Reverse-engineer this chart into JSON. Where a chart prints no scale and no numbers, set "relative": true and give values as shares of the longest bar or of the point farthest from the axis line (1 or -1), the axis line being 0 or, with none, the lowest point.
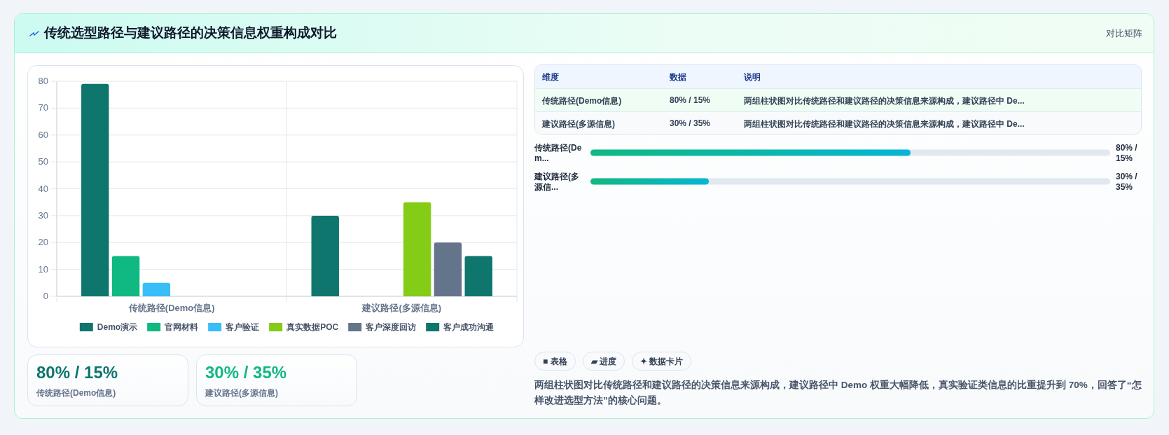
{
  "chart_data": [
    {
      "type": "other",
      "title": "传统选型路径与建议路径的决策信息权重构成对比",
      "annotations": [
        "对比矩阵"
      ]
    },
    {
      "type": "bar",
      "categories": [
        "传统路径(Demo信息)",
        "建议路径(多源信息)"
      ],
      "series": [
        {
          "name": "Demo演示",
          "color": "#0f766e",
          "values": [
            79,
            30
          ]
        },
        {
          "name": "官网材料",
          "color": "#10b981",
          "values": [
            15,
            null
          ]
        },
        {
          "name": "客户验证",
          "color": "#38bdf8",
          "values": [
            5,
            null
          ]
        },
        {
          "name": "真实数据POC",
          "color": "#84cc16",
          "values": [
            null,
            35
          ]
        },
        {
          "name": "客户深度回访",
          "color": "#64748b",
          "values": [
            null,
            20
          ]
        },
        {
          "name": "客户成功沟通",
          "color": "#0f766e",
          "values": [
            null,
            15
          ]
        }
      ],
      "ylim": [
        0,
        80
      ],
      "yticks": [
        0,
        10,
        20,
        30,
        40,
        50,
        60,
        70,
        80
      ],
      "grid": true,
      "legend": "bottom"
    },
    {
      "type": "other",
      "annotations": [
        "维度",
        "数据",
        "说明",
        "传统路径(Demo信息)",
        "80% / 15%",
        "两组柱状图对比传统路径和建议路径的决策信息来源构成，建议路径中 De...",
        "建议路径(多源信息)",
        "30% / 35%",
        "两组柱状图对比传统路径和建议路径的决策信息来源构成，建议路径中 De..."
      ]
    },
    {
      "type": "bar",
      "orientation": "horizontal",
      "relative": true,
      "categories": [
        "传统路径(Dem...",
        "建议路径(多源信..."
      ],
      "values": [
        1,
        0.37
      ],
      "annotations": [
        "80% / 15%",
        "30% / 35%"
      ],
      "color": "#10b981"
    },
    {
      "type": "other",
      "annotations": [
        "80% / 15%",
        "传统路径(Demo信息)",
        "30% / 35%",
        "建议路径(多源信息)"
      ]
    },
    {
      "type": "other",
      "annotations": [
        "■ 表格",
        "▰ 进度",
        "✦ 数据卡片",
        "两组柱状图对比传统路径和建议路径的决策信息来源构成，建议路径中 Demo 权重大幅降低，真实验证类信息的比重提升到 70%，回答了“怎样改进选型方法”的核心问题。"
      ]
    }
  ]
}
